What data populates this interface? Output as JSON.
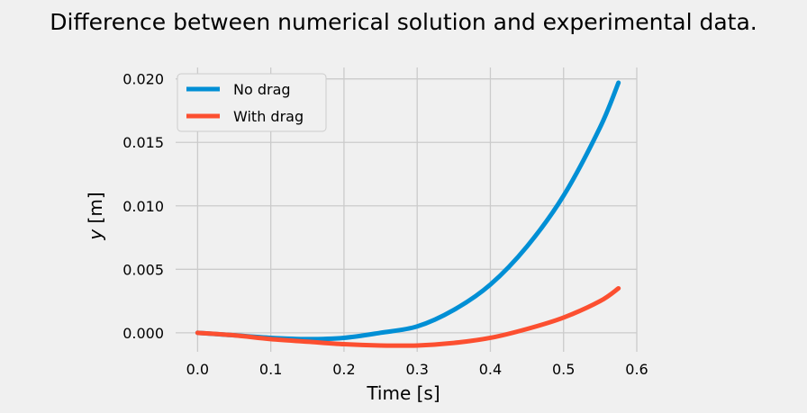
{
  "chart_data": {
    "type": "line",
    "title": "Difference between numerical solution and experimental data.",
    "xlabel": "Time [s]",
    "ylabel_var": "y",
    "ylabel_unit": " [m]",
    "xlim": [
      -0.03,
      0.6
    ],
    "ylim": [
      -0.0015,
      0.0209
    ],
    "xticks": [
      0.0,
      0.1,
      0.2,
      0.3,
      0.4,
      0.5,
      0.6
    ],
    "xtick_labels": [
      "0.0",
      "0.1",
      "0.2",
      "0.3",
      "0.4",
      "0.5",
      "0.6"
    ],
    "yticks": [
      0.0,
      0.005,
      0.01,
      0.015,
      0.02
    ],
    "ytick_labels": [
      "0.000",
      "0.005",
      "0.010",
      "0.015",
      "0.020"
    ],
    "grid": true,
    "legend_position": "top-left",
    "series": [
      {
        "name": "No drag",
        "color": "#008fd5",
        "x": [
          0.0,
          0.05,
          0.1,
          0.15,
          0.2,
          0.25,
          0.3,
          0.35,
          0.4,
          0.45,
          0.5,
          0.55,
          0.575
        ],
        "y": [
          0.0,
          -0.0002,
          -0.0004,
          -0.0005,
          -0.0004,
          0.0,
          0.0005,
          0.0018,
          0.0038,
          0.0068,
          0.0108,
          0.0162,
          0.0197
        ]
      },
      {
        "name": "With drag",
        "color": "#fc4f30",
        "x": [
          0.0,
          0.05,
          0.1,
          0.15,
          0.2,
          0.25,
          0.3,
          0.35,
          0.4,
          0.45,
          0.5,
          0.55,
          0.575
        ],
        "y": [
          0.0,
          -0.0002,
          -0.0005,
          -0.0007,
          -0.0009,
          -0.001,
          -0.001,
          -0.0008,
          -0.0004,
          0.0003,
          0.0012,
          0.0025,
          0.0035
        ]
      }
    ]
  }
}
